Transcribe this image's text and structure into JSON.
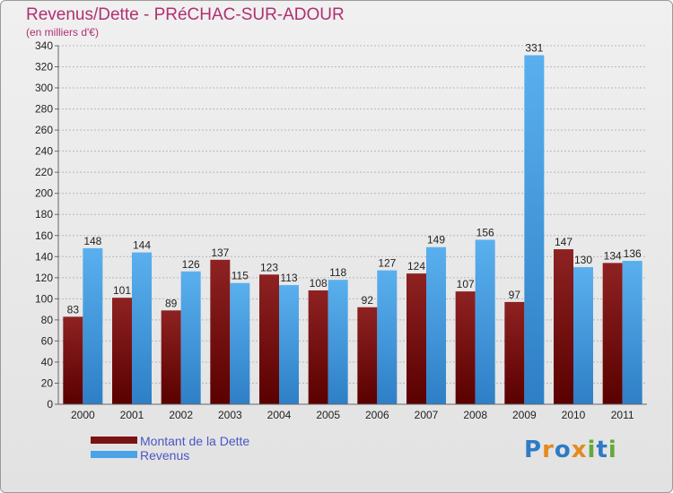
{
  "title": "Revenus/Dette - PRéCHAC-SUR-ADOUR",
  "subtitle": "(en milliers d'€)",
  "brand": "Proxiti",
  "colors": {
    "debt": "#7a1414",
    "revenue": "#4aa3e6"
  },
  "legend": {
    "debt_label": "Montant de la Dette",
    "revenue_label": "Revenus"
  },
  "chart_data": {
    "type": "bar",
    "title": "Revenus/Dette - PRéCHAC-SUR-ADOUR",
    "ylabel": "(en milliers d'€)",
    "xlabel": "",
    "ylim": [
      0,
      340
    ],
    "yticks": [
      0,
      20,
      40,
      60,
      80,
      100,
      120,
      140,
      160,
      180,
      200,
      220,
      240,
      260,
      280,
      300,
      320,
      340
    ],
    "grid": "horizontal",
    "legend_position": "bottom-left",
    "categories": [
      "2000",
      "2001",
      "2002",
      "2003",
      "2004",
      "2005",
      "2006",
      "2007",
      "2008",
      "2009",
      "2010",
      "2011"
    ],
    "series": [
      {
        "name": "Montant de la Dette",
        "values": [
          83,
          101,
          89,
          137,
          123,
          108,
          92,
          124,
          107,
          97,
          147,
          134
        ]
      },
      {
        "name": "Revenus",
        "values": [
          148,
          144,
          126,
          115,
          113,
          118,
          127,
          149,
          156,
          331,
          130,
          136
        ]
      }
    ]
  }
}
